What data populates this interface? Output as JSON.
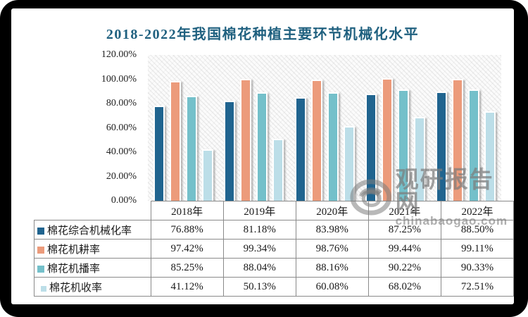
{
  "title": "2018-2022年我国棉花种植主要环节机械化水平",
  "title_color": "#1f607f",
  "chart_data": {
    "type": "bar",
    "title": "2018-2022年我国棉花种植主要环节机械化水平",
    "categories": [
      "2018年",
      "2019年",
      "2020年",
      "2021年",
      "2022年"
    ],
    "series": [
      {
        "name": "棉花综合机械化率",
        "color": "#20648f",
        "values": [
          76.88,
          81.18,
          83.98,
          87.25,
          88.5
        ]
      },
      {
        "name": "棉花机耕率",
        "color": "#ec9b7b",
        "values": [
          97.42,
          99.34,
          98.76,
          99.44,
          99.11
        ]
      },
      {
        "name": "棉花机播率",
        "color": "#74c0ca",
        "values": [
          85.25,
          88.04,
          88.16,
          90.22,
          90.33
        ]
      },
      {
        "name": "棉花机收率",
        "color": "#bcdee8",
        "values": [
          41.12,
          50.13,
          60.08,
          68.02,
          72.51
        ]
      }
    ],
    "xlabel": "",
    "ylabel": "",
    "ylim": [
      0,
      120
    ],
    "ytick_step": 20,
    "ytick_labels": [
      "120.00%",
      "100.00%",
      "80.00%",
      "60.00%",
      "40.00%",
      "20.00%",
      "0.00%"
    ],
    "grid": false,
    "legend_position": "table-left",
    "plot_background": "diagonal-hatch"
  },
  "table": {
    "header": [
      "2018年",
      "2019年",
      "2020年",
      "2021年",
      "2022年"
    ],
    "rows": [
      {
        "label": "棉花综合机械化率",
        "marker_color": "#20648f",
        "values": [
          "76.88%",
          "81.18%",
          "83.98%",
          "87.25%",
          "88.50%"
        ]
      },
      {
        "label": "棉花机耕率",
        "marker_color": "#ec9b7b",
        "values": [
          "97.42%",
          "99.34%",
          "98.76%",
          "99.44%",
          "99.11%"
        ]
      },
      {
        "label": "棉花机播率",
        "marker_color": "#74c0ca",
        "values": [
          "85.25%",
          "88.04%",
          "88.16%",
          "90.22%",
          "90.33%"
        ]
      },
      {
        "label": "棉花机收率",
        "marker_color": "#bcdee8",
        "values": [
          "41.12%",
          "50.13%",
          "60.08%",
          "68.02%",
          "72.51%"
        ]
      }
    ]
  },
  "watermark": {
    "site_name": "观研报告网",
    "site_url": "chinabaogao.com"
  }
}
